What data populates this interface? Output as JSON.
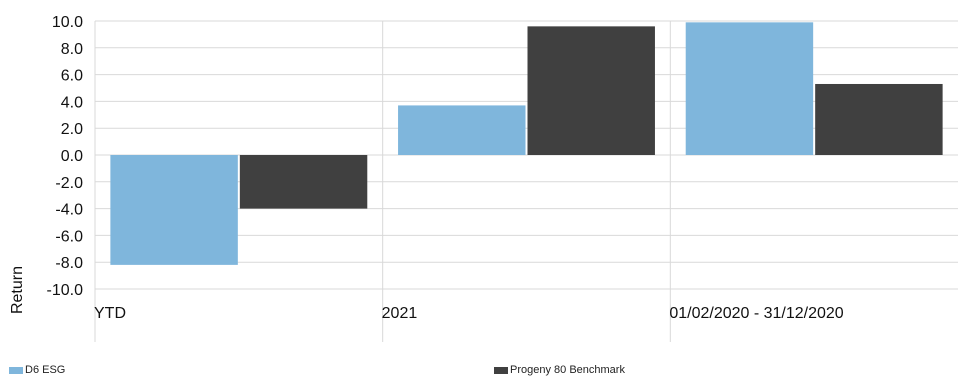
{
  "chart_data": {
    "type": "bar",
    "title": "",
    "xlabel": "",
    "ylabel": "Return",
    "ylim": [
      -10,
      10
    ],
    "yticks": [
      10,
      8,
      6,
      4,
      2,
      0,
      -2,
      -4,
      -6,
      -8,
      -10
    ],
    "ytick_labels": [
      "10.0",
      "8.0",
      "6.0",
      "4.0",
      "2.0",
      "0.0",
      "-2.0",
      "-4.0",
      "-6.0",
      "-8.0",
      "-10.0"
    ],
    "grid": true,
    "legend_position": "bottom",
    "categories": [
      "YTD",
      "2021",
      "01/02/2020 - 31/12/2020"
    ],
    "series": [
      {
        "name": "D6 ESG",
        "color": "#7fb6dc",
        "values": [
          -8.2,
          3.7,
          9.9
        ]
      },
      {
        "name": "Progeny 80 Benchmark",
        "color": "#404040",
        "values": [
          -4.0,
          9.6,
          5.3
        ]
      }
    ]
  }
}
